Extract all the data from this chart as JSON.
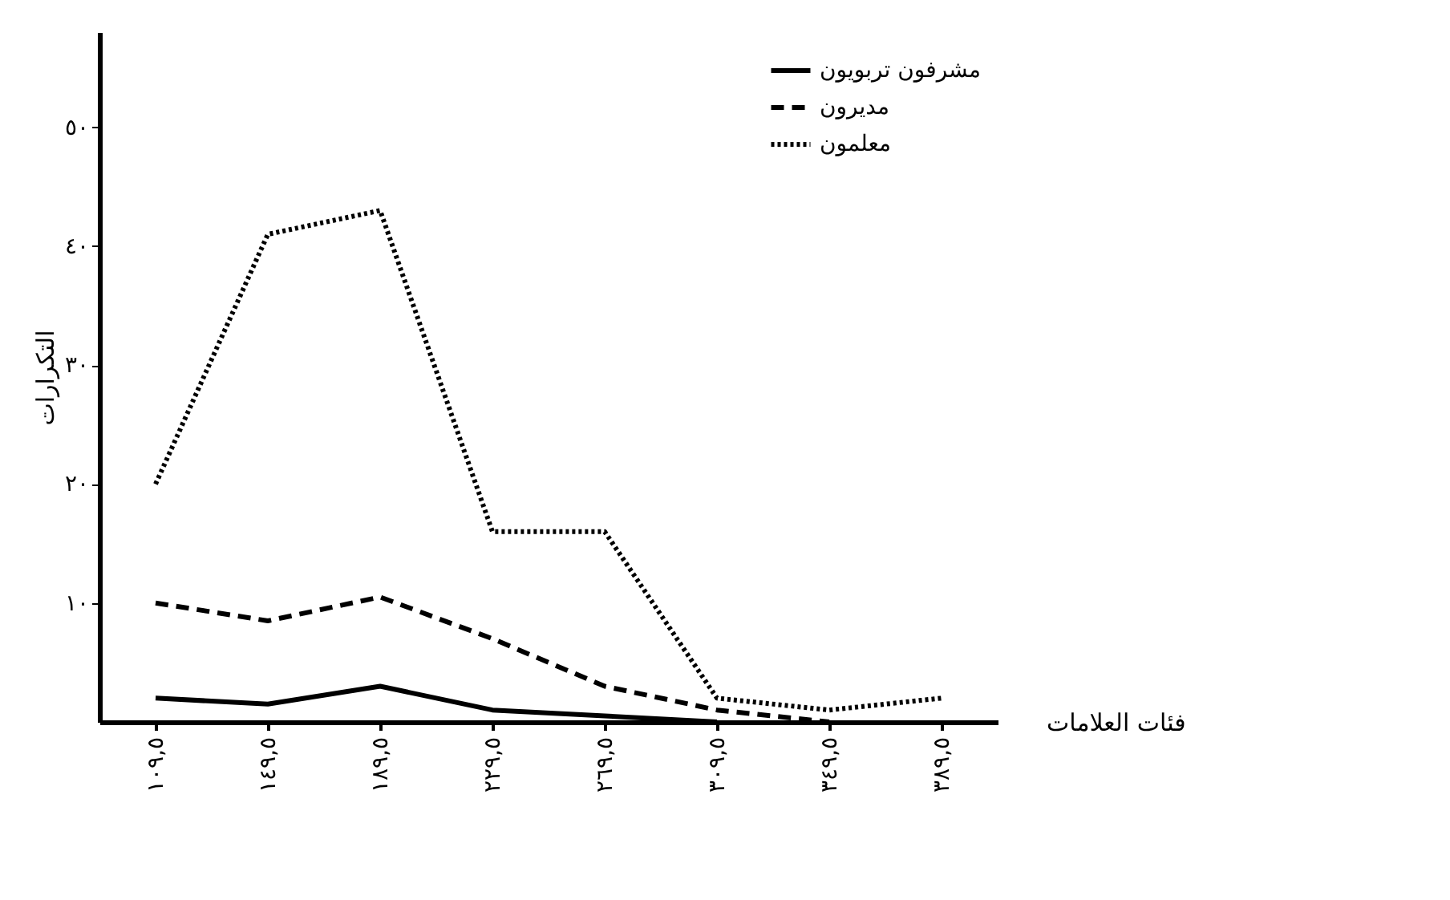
{
  "chart_data": {
    "type": "line",
    "xlabel": "فئات العلامات",
    "ylabel": "التكرارات",
    "categories": [
      "١٠٩,٥",
      "١٤٩,٥",
      "١٨٩,٥",
      "٢٢٩,٥",
      "٢٦٩,٥",
      "٣٠٩,٥",
      "٣٤٩,٥",
      "٣٨٩,٥"
    ],
    "series": [
      {
        "name": "مشرفون تربويون",
        "color": "#000000",
        "line_style": "solid",
        "values": [
          2,
          1.5,
          3,
          1,
          0.5,
          0,
          null,
          null
        ]
      },
      {
        "name": "مديرون",
        "color": "#000000",
        "line_style": "dashed",
        "values": [
          10,
          8.5,
          10.5,
          7,
          3,
          1,
          0,
          null
        ]
      },
      {
        "name": "معلمون",
        "color": "#000000",
        "line_style": "dotted",
        "values": [
          20,
          41,
          43,
          16,
          16,
          2,
          1,
          2
        ]
      }
    ],
    "ylim": [
      0,
      58
    ],
    "yticks": [
      {
        "value": 10,
        "label": "١٠"
      },
      {
        "value": 20,
        "label": "٢٠"
      },
      {
        "value": 30,
        "label": "٣٠"
      },
      {
        "value": 40,
        "label": "٤٠"
      },
      {
        "value": 50,
        "label": "٥٠"
      }
    ],
    "grid": false,
    "legend": "top right",
    "marker": "none"
  }
}
